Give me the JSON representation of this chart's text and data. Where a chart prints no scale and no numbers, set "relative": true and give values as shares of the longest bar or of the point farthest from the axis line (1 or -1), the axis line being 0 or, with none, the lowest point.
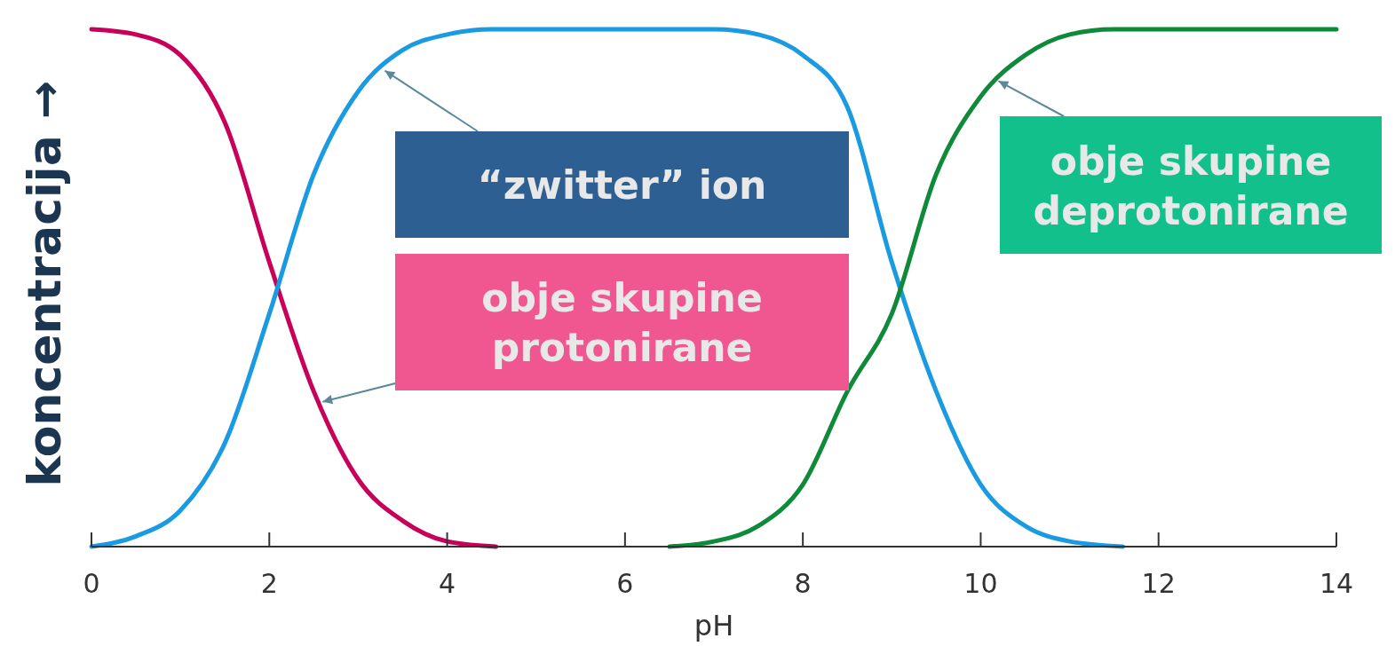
{
  "chart_data": {
    "type": "line",
    "relative": true,
    "xlabel": "pH",
    "ylabel": "koncentracija →",
    "xlim": [
      0,
      14
    ],
    "xticks": [
      0,
      2,
      4,
      6,
      8,
      10,
      12,
      14
    ],
    "grid": false,
    "marker": "none",
    "line_style": "solid",
    "series": [
      {
        "color": "#c8005a",
        "x": [
          0,
          0.5,
          1,
          1.5,
          2,
          2.5,
          3,
          3.5,
          4,
          4.55
        ],
        "values": [
          1,
          0.99,
          0.95,
          0.82,
          0.55,
          0.3,
          0.13,
          0.05,
          0.01,
          0
        ]
      },
      {
        "color": "#1a9ae0",
        "x": [
          0,
          0.5,
          1,
          1.5,
          2,
          2.5,
          3,
          3.5,
          4,
          4.5,
          7,
          7.5,
          8,
          8.5,
          9,
          9.5,
          10,
          10.5,
          11,
          11.6
        ],
        "values": [
          0,
          0.02,
          0.07,
          0.2,
          0.45,
          0.72,
          0.88,
          0.96,
          0.99,
          1,
          1,
          0.99,
          0.95,
          0.85,
          0.55,
          0.3,
          0.12,
          0.04,
          0.01,
          0
        ]
      },
      {
        "color": "#0e8a3a",
        "x": [
          6.5,
          7,
          7.5,
          8,
          8.5,
          9,
          9.5,
          10,
          10.5,
          11,
          11.5,
          14
        ],
        "values": [
          0,
          0.01,
          0.04,
          0.12,
          0.3,
          0.45,
          0.72,
          0.87,
          0.95,
          0.99,
          1,
          1
        ]
      }
    ],
    "annotations": [
      {
        "text": "“zwitter” ion",
        "x": 3.3,
        "y": 0.92
      },
      {
        "text": "obje skupine protonirane",
        "x": 2.6,
        "y": 0.28
      },
      {
        "text": "obje skupine deprotonirane",
        "x": 10.2,
        "y": 0.9
      }
    ]
  }
}
